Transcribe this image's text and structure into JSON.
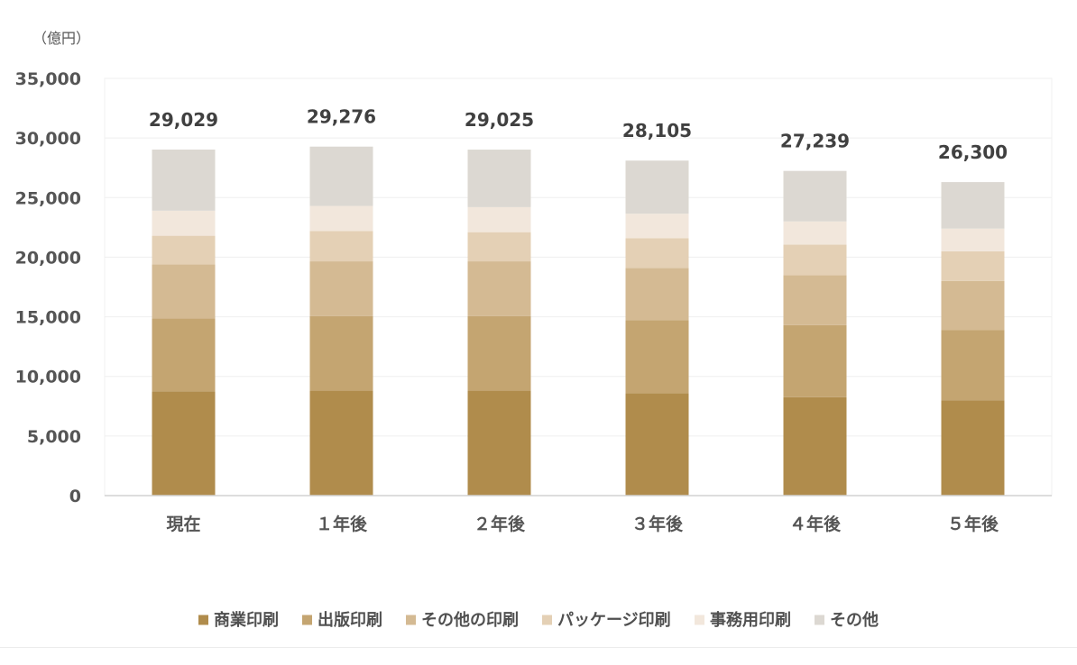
{
  "chart_data": {
    "type": "bar",
    "stacked": true,
    "unit_label": "（億円）",
    "ylim": [
      0,
      35000
    ],
    "yticks": [
      0,
      5000,
      10000,
      15000,
      20000,
      25000,
      30000,
      35000
    ],
    "ytick_labels": [
      "0",
      "5,000",
      "10,000",
      "15,000",
      "20,000",
      "25,000",
      "30,000",
      "35,000"
    ],
    "grid": true,
    "legend_position": "bottom",
    "categories": [
      "現在",
      "１年後",
      "２年後",
      "３年後",
      "４年後",
      "５年後"
    ],
    "totals": [
      29029,
      29276,
      29025,
      28105,
      27239,
      26300
    ],
    "total_labels": [
      "29,029",
      "29,276",
      "29,025",
      "28,105",
      "27,239",
      "26,300"
    ],
    "series": [
      {
        "name": "商業印刷",
        "color": "#b08c4c",
        "values": [
          8750,
          8800,
          8800,
          8600,
          8250,
          8000
        ]
      },
      {
        "name": "出版印刷",
        "color": "#c4a571",
        "values": [
          6100,
          6250,
          6250,
          6100,
          6050,
          5900
        ]
      },
      {
        "name": "その他の印刷",
        "color": "#d4ba93",
        "values": [
          4550,
          4600,
          4600,
          4400,
          4200,
          4100
        ]
      },
      {
        "name": "パッケージ印刷",
        "color": "#e4d0b5",
        "values": [
          2400,
          2550,
          2450,
          2500,
          2550,
          2500
        ]
      },
      {
        "name": "事務用印刷",
        "color": "#f2e7dc",
        "values": [
          2100,
          2100,
          2100,
          2050,
          1950,
          1900
        ]
      },
      {
        "name": "その他",
        "color": "#dcd8d2",
        "values": [
          5129,
          4976,
          4825,
          4455,
          4239,
          3900
        ]
      }
    ]
  }
}
